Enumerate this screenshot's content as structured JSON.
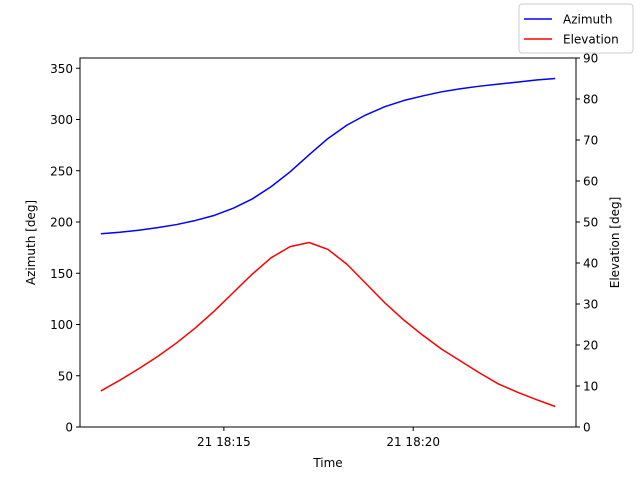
{
  "chart_data": {
    "type": "line",
    "title": "",
    "xlabel": "Time",
    "ylabel_left": "Azimuth [deg]",
    "ylabel_right": "Elevation [deg]",
    "x_ticks": [
      {
        "minutes": 15,
        "label": "21 18:15"
      },
      {
        "minutes": 20,
        "label": "21 18:20"
      }
    ],
    "xlim": [
      11.2,
      24.3
    ],
    "ylim_left": [
      0,
      360
    ],
    "ylim_right": [
      0,
      90
    ],
    "y_ticks_left": [
      0,
      50,
      100,
      150,
      200,
      250,
      300,
      350
    ],
    "y_ticks_right": [
      0,
      10,
      20,
      30,
      40,
      50,
      60,
      70,
      80,
      90
    ],
    "x": [
      11.75,
      12.25,
      12.75,
      13.25,
      13.75,
      14.25,
      14.75,
      15.25,
      15.75,
      16.25,
      16.75,
      17.25,
      17.75,
      18.25,
      18.75,
      19.25,
      19.75,
      20.25,
      20.75,
      21.25,
      21.75,
      22.25,
      22.75,
      23.25,
      23.75
    ],
    "series": [
      {
        "name": "Azimuth",
        "axis": "left",
        "color": "#0000ff",
        "values": [
          188.5,
          190,
          192,
          194.5,
          197.5,
          201.5,
          206.5,
          213.5,
          222.5,
          234.5,
          249,
          265.5,
          281.5,
          294.5,
          304.5,
          312.5,
          318.5,
          323,
          327,
          330,
          332.5,
          334.5,
          336.5,
          338.5,
          340
        ]
      },
      {
        "name": "Elevation",
        "axis": "right",
        "color": "#ff0000",
        "values": [
          8.8,
          11.4,
          14.2,
          17.2,
          20.5,
          24.2,
          28.3,
          32.8,
          37.3,
          41.3,
          44.0,
          45.0,
          43.3,
          39.7,
          35.0,
          30.3,
          26.1,
          22.4,
          19.0,
          16.1,
          13.2,
          10.5,
          8.5,
          6.7,
          5.0
        ]
      }
    ],
    "legend_position": "top-right",
    "grid": false
  }
}
